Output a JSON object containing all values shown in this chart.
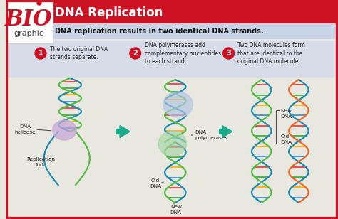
{
  "title": "DNA Replication",
  "subtitle": "DNA replication results in two identical DNA strands.",
  "header_bg": "#cc1122",
  "subtitle_bg": "#c8d4e8",
  "body_bg": "#e8e8e0",
  "steps_bg": "#d8dce8",
  "border_color": "#cc1122",
  "step1_num": "1",
  "step1_text": "The two original DNA\nstrands separate.",
  "step2_num": "2",
  "step2_text": "DNA polymerases add\ncomplementary nucleotides\nto each strand.",
  "step3_num": "3",
  "step3_text": "Two DNA molecules form\nthat are identical to the\noriginal DNA molecule.",
  "label_helicase": "DNA\nhelicase",
  "label_fork": "Replication\nfork",
  "label_polymerases": "DNA\npolymerases",
  "label_old_dna_2": "Old\nDNA",
  "label_new_dna_2": "New\nDNA",
  "label_new_dna_3a": "New\nDNA",
  "label_old_dna_3": "Old\nDNA",
  "bio_text": "BIO",
  "graphic_text": "graphic",
  "arrow_color": "#1aaa8a",
  "step_circle_color": "#cc1122",
  "title_color": "#ffffff",
  "subtitle_color": "#111111",
  "body_text_color": "#222222",
  "strand_color1": "#1a8ab0",
  "strand_color2": "#55bb44",
  "strand_color3": "#ee6622",
  "rung_colors": [
    "#ee3333",
    "#33aa33",
    "#ffaa00",
    "#3388dd"
  ]
}
